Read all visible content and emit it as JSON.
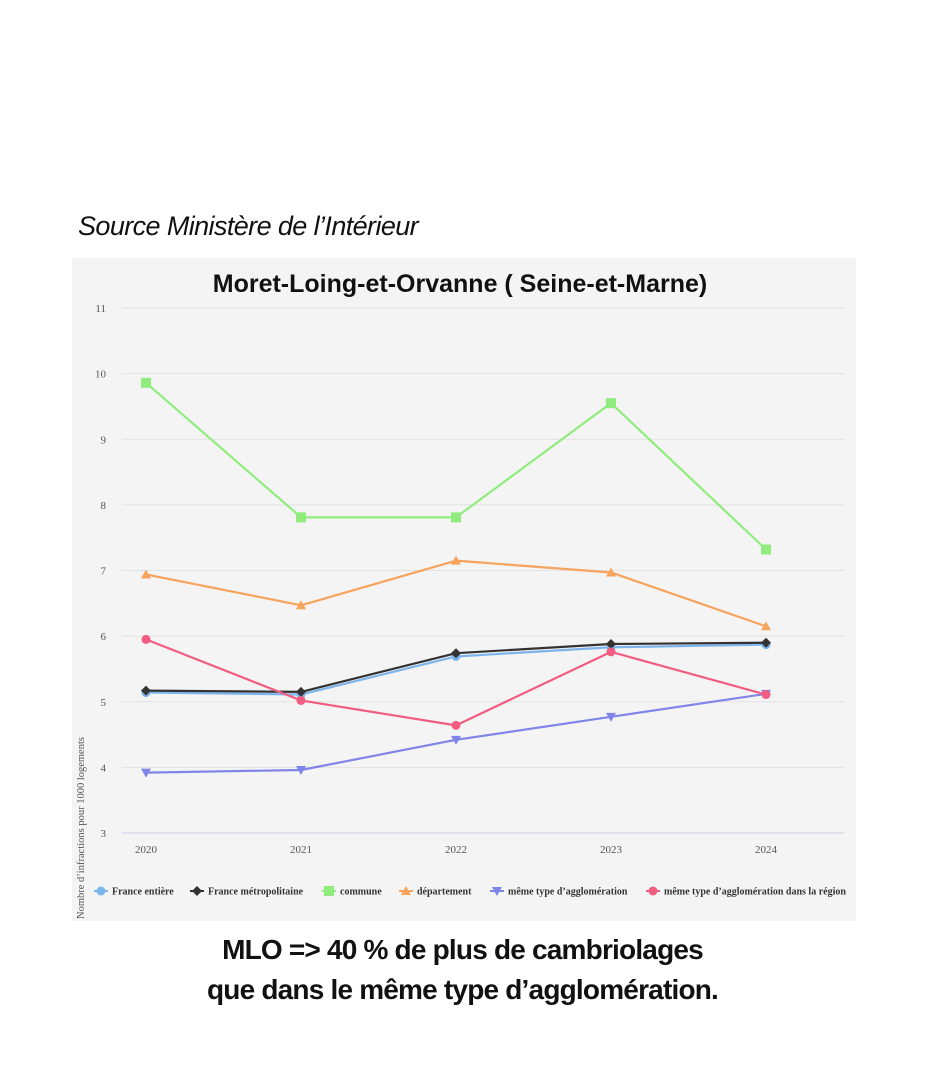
{
  "source_text": "Source Ministère de l’Intérieur",
  "conclusion": {
    "line1": "MLO => 40 % de plus de cambriolages",
    "line2": "que dans le même type d’agglomération."
  },
  "chart_data": {
    "type": "line",
    "title": "Moret-Loing-et-Orvanne ( Seine-et-Marne)",
    "xlabel": "",
    "ylabel": "Nombre d’infractions pour 1000 logements",
    "categories": [
      "2020",
      "2021",
      "2022",
      "2023",
      "2024"
    ],
    "ylim": [
      3,
      11
    ],
    "yticks": [
      3,
      4,
      5,
      6,
      7,
      8,
      9,
      10,
      11
    ],
    "grid": true,
    "legend_position": "bottom",
    "series": [
      {
        "name": "France entière",
        "color": "#7cb5ec",
        "marker": "circle",
        "values": [
          5.14,
          5.11,
          5.69,
          5.83,
          5.87
        ]
      },
      {
        "name": "France métropolitaine",
        "color": "#333333",
        "marker": "diamond",
        "values": [
          5.17,
          5.15,
          5.74,
          5.88,
          5.9
        ]
      },
      {
        "name": "commune",
        "color": "#90ed7d",
        "marker": "square",
        "values": [
          9.86,
          7.81,
          7.81,
          9.55,
          7.32
        ]
      },
      {
        "name": "département",
        "color": "#f7a35c",
        "marker": "triangle",
        "values": [
          6.94,
          6.47,
          7.15,
          6.97,
          6.15
        ]
      },
      {
        "name": "même type d’agglomération",
        "color": "#8085e9",
        "marker": "triangle-down",
        "values": [
          3.92,
          3.96,
          4.42,
          4.77,
          5.12
        ]
      },
      {
        "name": "même type d’agglomération dans la région",
        "color": "#f15c80",
        "marker": "circle",
        "values": [
          5.95,
          5.02,
          4.64,
          5.76,
          5.11
        ]
      }
    ]
  }
}
